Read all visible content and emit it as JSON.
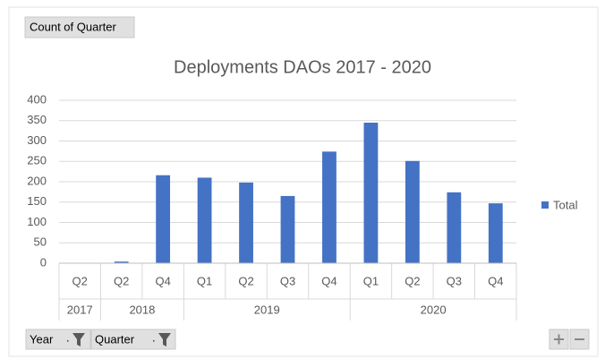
{
  "chart_data": {
    "type": "bar",
    "title": "Deployments DAOs 2017 - 2020",
    "value_button": "Count of Quarter",
    "axis_buttons": [
      "Year",
      "Quarter"
    ],
    "series": [
      {
        "name": "Total",
        "color": "#4472c4"
      }
    ],
    "groups": [
      {
        "name": "2017",
        "categories": [
          "Q2"
        ],
        "values": [
          1
        ]
      },
      {
        "name": "2018",
        "categories": [
          "Q2",
          "Q4"
        ],
        "values": [
          4,
          216
        ]
      },
      {
        "name": "2019",
        "categories": [
          "Q1",
          "Q2",
          "Q3",
          "Q4"
        ],
        "values": [
          210,
          198,
          165,
          274
        ]
      },
      {
        "name": "2020",
        "categories": [
          "Q1",
          "Q2",
          "Q3",
          "Q4"
        ],
        "values": [
          345,
          251,
          174,
          147
        ]
      }
    ],
    "ylim": [
      0,
      400
    ],
    "yticks": [
      0,
      50,
      100,
      150,
      200,
      250,
      300,
      350,
      400
    ],
    "grid": true,
    "legend": "right"
  }
}
